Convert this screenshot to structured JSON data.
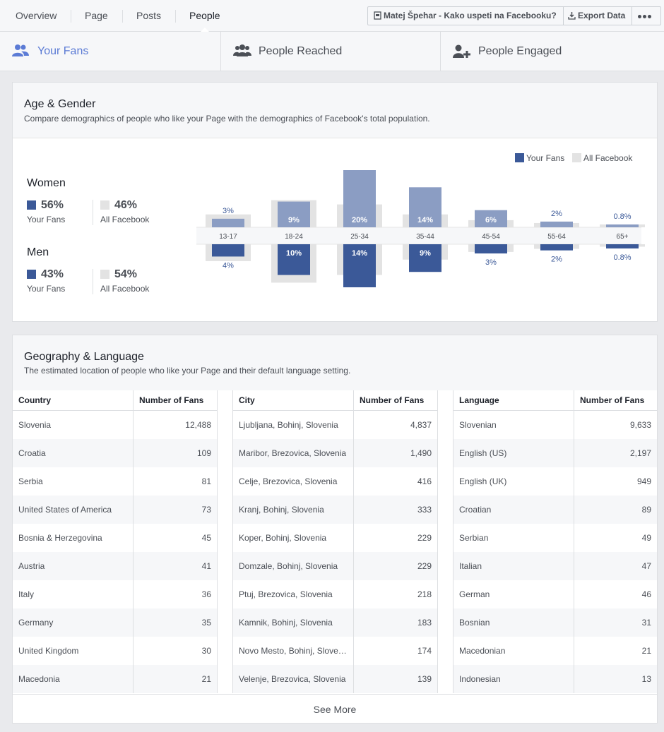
{
  "nav": {
    "tabs": [
      "Overview",
      "Page",
      "Posts",
      "People"
    ],
    "active": "People",
    "page_button_label": "Matej Špehar - Kako uspeti na Facebooku?",
    "export_label": "Export Data",
    "more_icon": "ellipsis-icon"
  },
  "subtabs": [
    {
      "label": "Your Fans",
      "icon": "fans-icon",
      "active": true
    },
    {
      "label": "People Reached",
      "icon": "people-reached-icon",
      "active": false
    },
    {
      "label": "People Engaged",
      "icon": "people-engaged-icon",
      "active": false
    }
  ],
  "colors": {
    "fans_dark": "#3b5998",
    "fans_light": "#8b9dc3",
    "all_facebook": "#e3e3e3",
    "accent": "#5b7bd5"
  },
  "age_gender": {
    "title": "Age & Gender",
    "subtitle": "Compare demographics of people who like your Page with the demographics of Facebook's total population.",
    "legend": {
      "fans": "Your Fans",
      "all": "All Facebook"
    },
    "women": {
      "label": "Women",
      "fans_pct": "56%",
      "all_pct": "46%",
      "fans_label": "Your Fans",
      "all_label": "All Facebook"
    },
    "men": {
      "label": "Men",
      "fans_pct": "43%",
      "all_pct": "54%",
      "fans_label": "Your Fans",
      "all_label": "All Facebook"
    }
  },
  "chart_data": {
    "type": "bar",
    "categories": [
      "13-17",
      "18-24",
      "25-34",
      "35-44",
      "45-54",
      "55-64",
      "65+"
    ],
    "series": [
      {
        "name": "Women",
        "values": [
          3,
          9,
          20,
          14,
          6,
          2,
          0.8
        ],
        "labels": [
          "3%",
          "9%",
          "20%",
          "14%",
          "6%",
          "2%",
          "0.8%"
        ]
      },
      {
        "name": "Men",
        "values": [
          4,
          10,
          14,
          9,
          3,
          2,
          0.8
        ],
        "labels": [
          "4%",
          "10%",
          "14%",
          "9%",
          "3%",
          "2%",
          "0.8%"
        ]
      }
    ],
    "all_facebook_women": [
      4.5,
      9.5,
      8,
      4.5,
      2.5,
      1.5,
      1
    ],
    "all_facebook_men": [
      5.5,
      12.5,
      10,
      5,
      2.5,
      1.5,
      0.8
    ]
  },
  "geography": {
    "title": "Geography & Language",
    "subtitle": "The estimated location of people who like your Page and their default language setting.",
    "tables": [
      {
        "headers": [
          "Country",
          "Number of Fans"
        ],
        "rows": [
          [
            "Slovenia",
            "12,488"
          ],
          [
            "Croatia",
            "109"
          ],
          [
            "Serbia",
            "81"
          ],
          [
            "United States of America",
            "73"
          ],
          [
            "Bosnia & Herzegovina",
            "45"
          ],
          [
            "Austria",
            "41"
          ],
          [
            "Italy",
            "36"
          ],
          [
            "Germany",
            "35"
          ],
          [
            "United Kingdom",
            "30"
          ],
          [
            "Macedonia",
            "21"
          ]
        ]
      },
      {
        "headers": [
          "City",
          "Number of Fans"
        ],
        "rows": [
          [
            "Ljubljana, Bohinj, Slovenia",
            "4,837"
          ],
          [
            "Maribor, Brezovica, Slovenia",
            "1,490"
          ],
          [
            "Celje, Brezovica, Slovenia",
            "416"
          ],
          [
            "Kranj, Bohinj, Slovenia",
            "333"
          ],
          [
            "Koper, Bohinj, Slovenia",
            "229"
          ],
          [
            "Domzale, Bohinj, Slovenia",
            "229"
          ],
          [
            "Ptuj, Brezovica, Slovenia",
            "218"
          ],
          [
            "Kamnik, Bohinj, Slovenia",
            "183"
          ],
          [
            "Novo Mesto, Bohinj, Slove…",
            "174"
          ],
          [
            "Velenje, Brezovica, Slovenia",
            "139"
          ]
        ]
      },
      {
        "headers": [
          "Language",
          "Number of Fans"
        ],
        "rows": [
          [
            "Slovenian",
            "9,633"
          ],
          [
            "English (US)",
            "2,197"
          ],
          [
            "English (UK)",
            "949"
          ],
          [
            "Croatian",
            "89"
          ],
          [
            "Serbian",
            "49"
          ],
          [
            "Italian",
            "47"
          ],
          [
            "German",
            "46"
          ],
          [
            "Bosnian",
            "31"
          ],
          [
            "Macedonian",
            "21"
          ],
          [
            "Indonesian",
            "13"
          ]
        ]
      }
    ],
    "see_more": "See More"
  }
}
